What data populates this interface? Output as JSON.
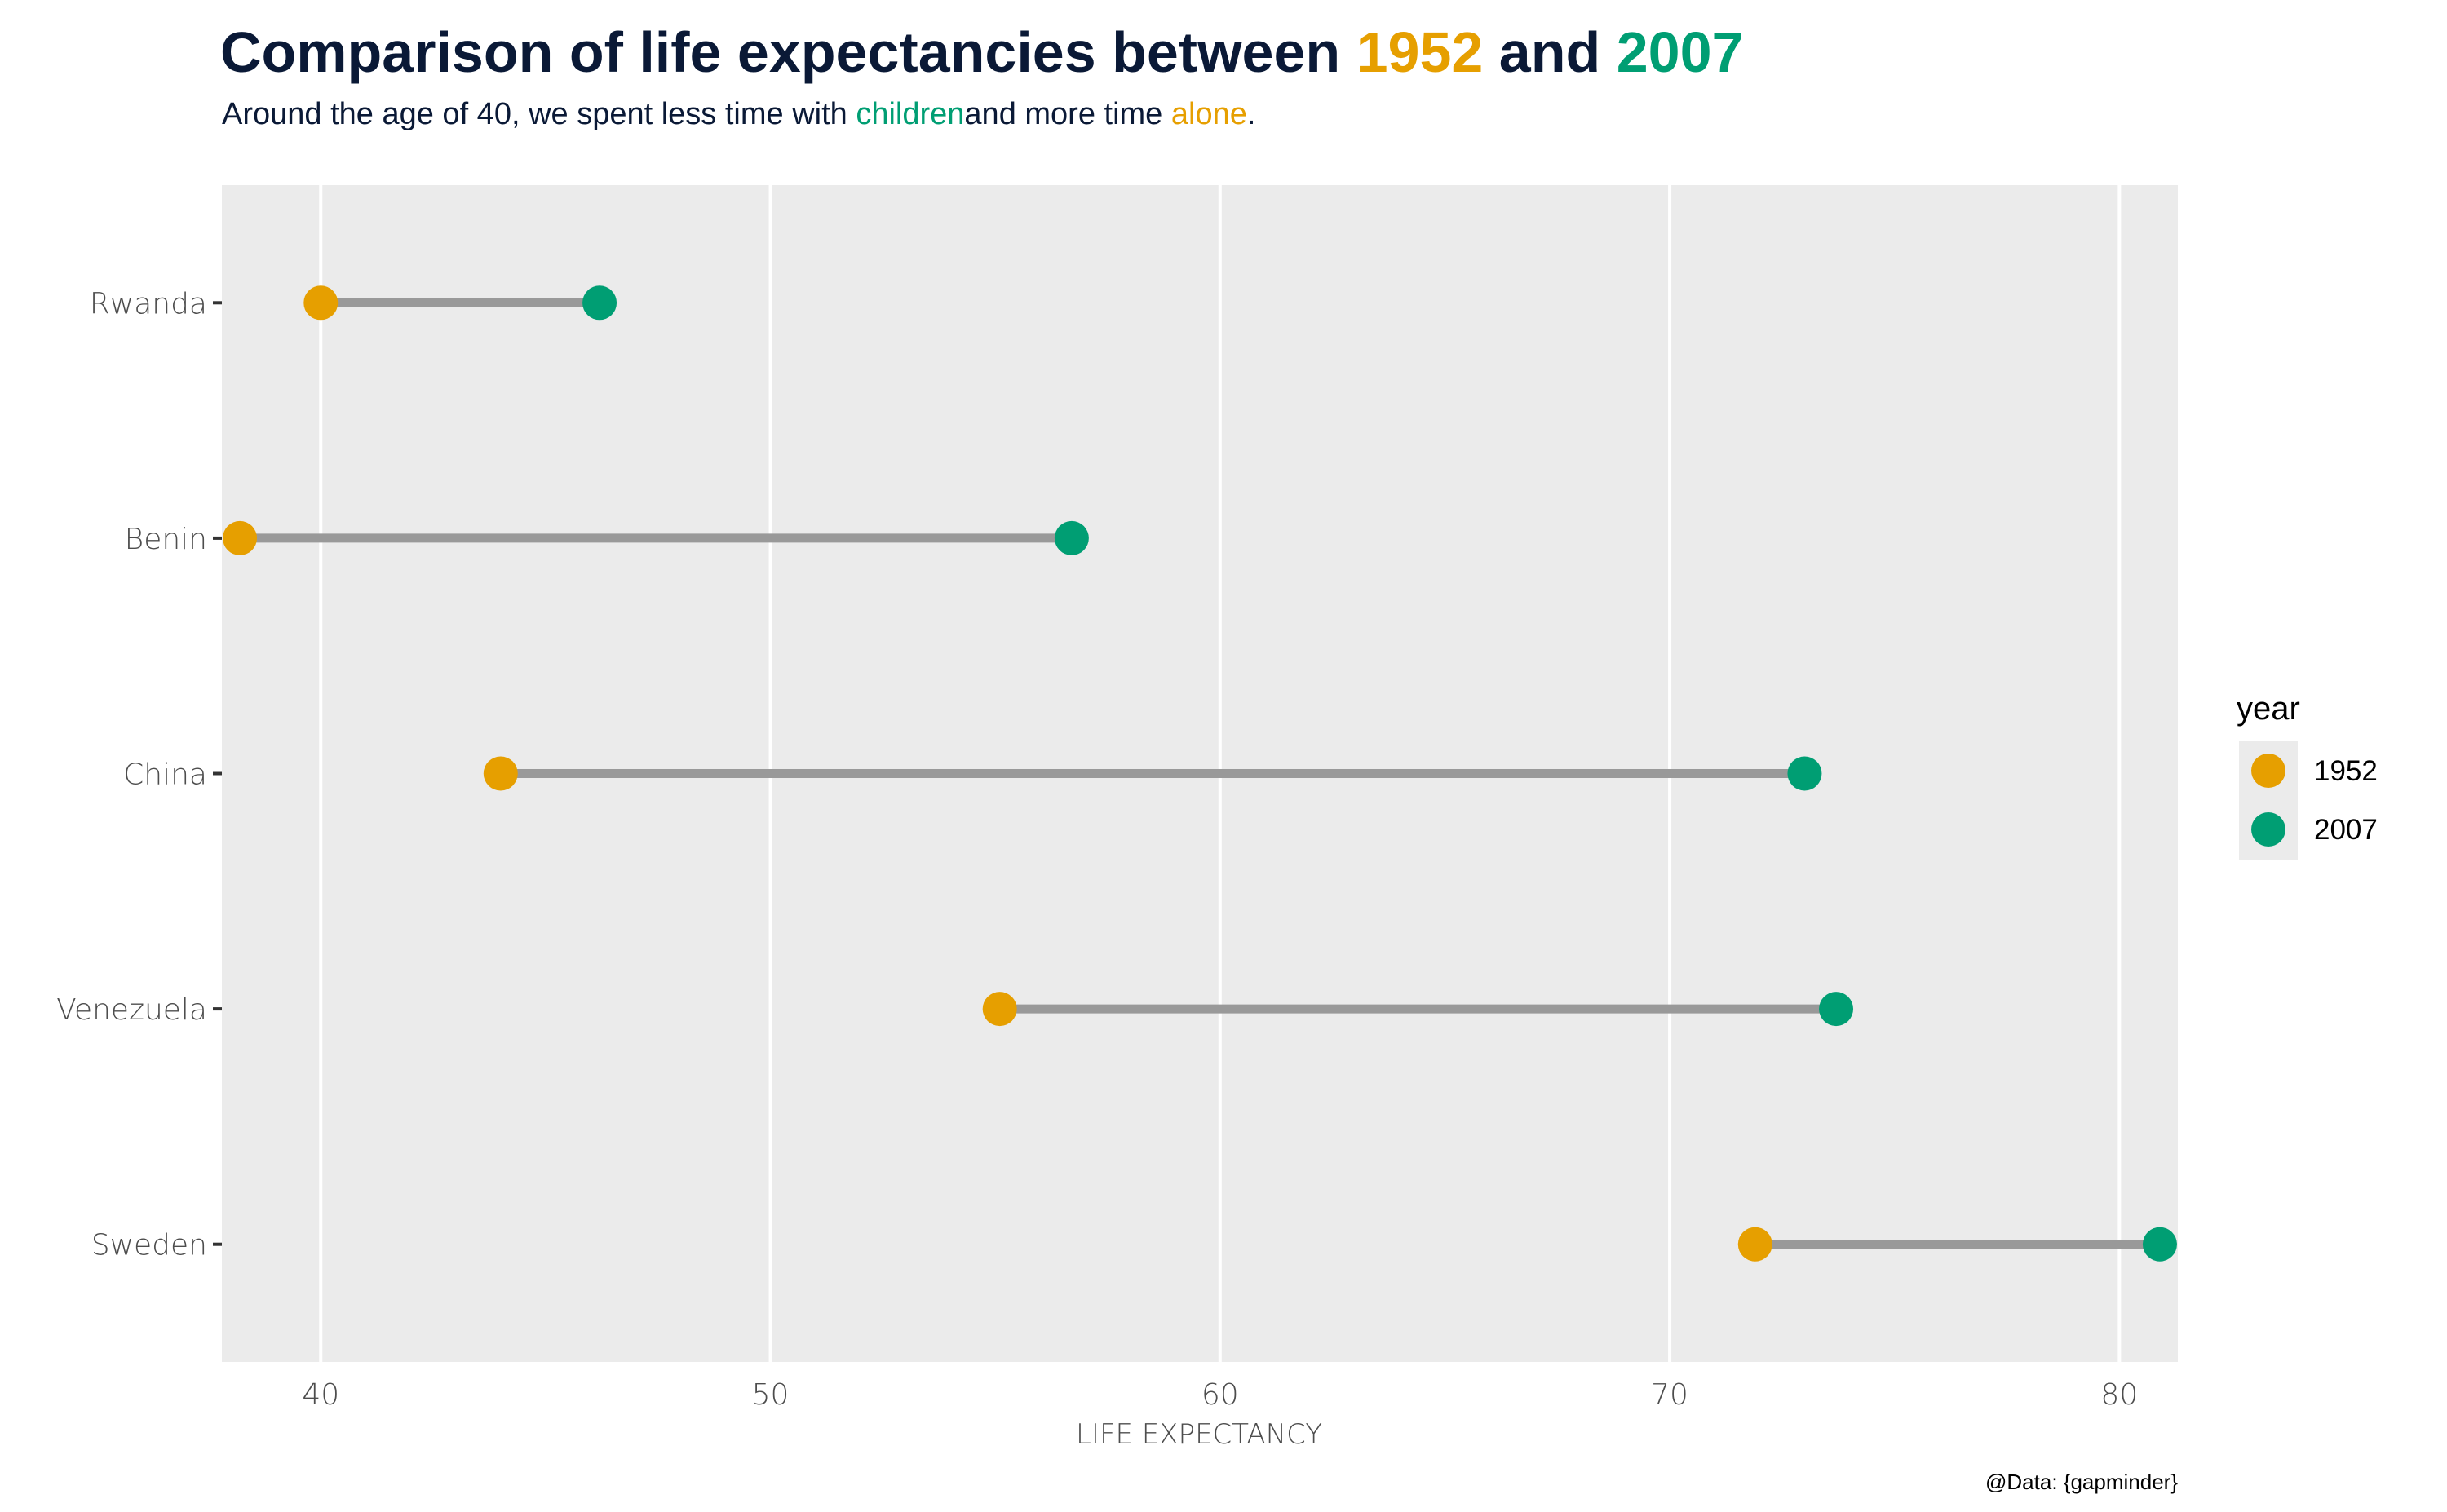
{
  "chart_data": {
    "type": "scatter",
    "subtype": "dumbbell",
    "title_parts": [
      {
        "text": "Comparison of life expectancies between ",
        "color": "#0a1936"
      },
      {
        "text": "1952",
        "color": "#E69F00"
      },
      {
        "text": " and ",
        "color": "#0a1936"
      },
      {
        "text": "2007",
        "color": "#009E73"
      }
    ],
    "subtitle_parts": [
      {
        "text": "Around the age of 40, we spent less time with ",
        "color": "#0a1936"
      },
      {
        "text": "children",
        "color": "#009E73"
      },
      {
        "text": "and more  time ",
        "color": "#0a1936"
      },
      {
        "text": "alone",
        "color": "#E69F00"
      },
      {
        "text": ".",
        "color": "#0a1936"
      }
    ],
    "xlabel": "LIFE EXPECTANCY",
    "ylabel": "",
    "xlim": [
      37.8,
      81.3
    ],
    "xticks": [
      40,
      50,
      60,
      70,
      80
    ],
    "categories": [
      "Rwanda",
      "Benin",
      "China",
      "Venezuela",
      "Sweden"
    ],
    "series": [
      {
        "name": "1952",
        "color": "#E69F00",
        "values": [
          40.0,
          38.2,
          44.0,
          55.1,
          71.9
        ]
      },
      {
        "name": "2007",
        "color": "#009E73",
        "values": [
          46.2,
          56.7,
          73.0,
          73.7,
          80.9
        ]
      }
    ],
    "connector_color": "#999999",
    "legend": {
      "title": "year",
      "position": "right"
    },
    "grid": true,
    "panel_background": "#ebebeb",
    "caption": "@Data: {gapminder}"
  }
}
